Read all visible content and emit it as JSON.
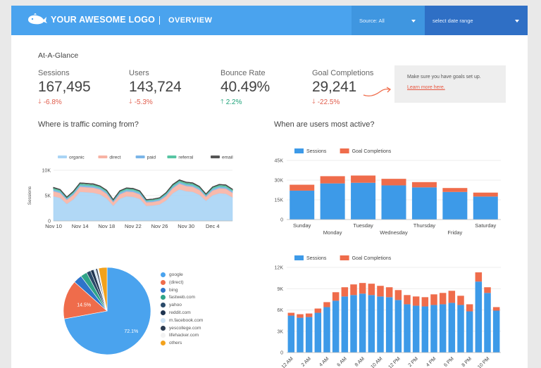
{
  "header": {
    "logo_text": "YOUR AWESOME LOGO",
    "section": "OVERVIEW",
    "source_label": "Source: All",
    "date_label": "select date range"
  },
  "glance_title": "At-A-Glance",
  "metrics": [
    {
      "label": "Sessions",
      "value": "167,495",
      "delta": "-6.8%",
      "direction": "down"
    },
    {
      "label": "Users",
      "value": "143,724",
      "delta": "-5.3%",
      "direction": "down"
    },
    {
      "label": "Bounce Rate",
      "value": "40.49%",
      "delta": "2.2%",
      "direction": "up"
    },
    {
      "label": "Goal Completions",
      "value": "29,241",
      "delta": "-22.5%",
      "direction": "down"
    }
  ],
  "goals_note": {
    "text": "Make sure you have goals set up.",
    "link": "Learn more here."
  },
  "sections": {
    "traffic": "Where is traffic coming from?",
    "active": "When are users most active?"
  },
  "colors": {
    "brand": "#4aa3ee",
    "sessions": "#3d9ae8",
    "goals": "#ef6c4b",
    "negative": "#e05c4b",
    "positive": "#1fa37a"
  },
  "chart_data": [
    {
      "type": "area",
      "ylabel": "Sessions",
      "x": [
        "Nov 10",
        "",
        "",
        "",
        "Nov 14",
        "",
        "",
        "",
        "Nov 18",
        "",
        "",
        "",
        "Nov 22",
        "",
        "",
        "",
        "Nov 26",
        "",
        "",
        "",
        "Nov 30",
        "",
        "",
        "",
        "Dec 4",
        "",
        "",
        ""
      ],
      "x_ticks": [
        "Nov 10",
        "Nov 14",
        "Nov 18",
        "Nov 22",
        "Nov 26",
        "Nov 30",
        "Dec 4"
      ],
      "ylim": [
        0,
        10000
      ],
      "y_ticks": [
        "0",
        "5K",
        "10K"
      ],
      "stacked": true,
      "series": [
        {
          "name": "organic",
          "color": "#a9d4f5",
          "values": [
            4800,
            4500,
            3300,
            4200,
            5700,
            5600,
            5500,
            5200,
            4400,
            2900,
            4300,
            4800,
            4700,
            4300,
            2900,
            3000,
            3200,
            4000,
            5400,
            6200,
            5800,
            5700,
            5100,
            3900,
            5000,
            5400,
            5300,
            4600
          ]
        },
        {
          "name": "direct",
          "color": "#f7b3a4",
          "values": [
            1000,
            950,
            800,
            900,
            1000,
            1000,
            1000,
            950,
            900,
            700,
            900,
            950,
            950,
            900,
            700,
            700,
            750,
            850,
            1000,
            1100,
            1050,
            1000,
            950,
            800,
            950,
            1000,
            1000,
            900
          ]
        },
        {
          "name": "paid",
          "color": "#7ab5e8",
          "values": [
            300,
            300,
            250,
            300,
            300,
            300,
            300,
            300,
            300,
            250,
            300,
            300,
            300,
            300,
            250,
            250,
            250,
            300,
            300,
            300,
            300,
            300,
            300,
            250,
            300,
            300,
            300,
            300
          ]
        },
        {
          "name": "referral",
          "color": "#58c5a3",
          "values": [
            300,
            300,
            250,
            300,
            300,
            300,
            300,
            300,
            300,
            250,
            300,
            300,
            300,
            300,
            250,
            250,
            250,
            300,
            300,
            300,
            300,
            300,
            300,
            250,
            300,
            300,
            300,
            300
          ]
        },
        {
          "name": "email",
          "color": "#555555",
          "values": [
            200,
            150,
            100,
            150,
            200,
            200,
            200,
            150,
            150,
            100,
            150,
            150,
            150,
            150,
            100,
            100,
            100,
            150,
            200,
            200,
            200,
            200,
            150,
            100,
            150,
            200,
            200,
            150
          ]
        }
      ]
    },
    {
      "type": "bar",
      "stacked": true,
      "categories": [
        "Sunday",
        "Monday",
        "Tuesday",
        "Wednesday",
        "Thursday",
        "Friday",
        "Saturday"
      ],
      "ylim": [
        0,
        45000
      ],
      "y_ticks": [
        "0",
        "15K",
        "30K",
        "45K"
      ],
      "series": [
        {
          "name": "Sessions",
          "color": "#3d9ae8",
          "values": [
            22000,
            27500,
            28000,
            26000,
            24500,
            21000,
            17500
          ]
        },
        {
          "name": "Goal Completions",
          "color": "#ef6c4b",
          "values": [
            4500,
            5500,
            5500,
            5000,
            4000,
            3000,
            3000
          ]
        }
      ]
    },
    {
      "type": "pie",
      "labels": [
        "google",
        "(direct)",
        "bing",
        "fastweb.com",
        "yahoo",
        "reddit.com",
        "m.facebook.com",
        "yescollege.com",
        "lifehacker.com",
        "others"
      ],
      "values": [
        72.1,
        14.5,
        3.2,
        2.4,
        1.6,
        1.2,
        0.8,
        0.6,
        0.5,
        3.1
      ],
      "data_labels": [
        "72.1%",
        "14.5%",
        "",
        "",
        "",
        "",
        "",
        "",
        "",
        ""
      ],
      "colors": [
        "#4aa3ee",
        "#ef6c4b",
        "#2e74c9",
        "#2fa488",
        "#2a4a6a",
        "#1f3450",
        "#cfe4f6",
        "#2a3a50",
        "#f2f2f2",
        "#f3a21c"
      ]
    },
    {
      "type": "bar",
      "stacked": true,
      "categories": [
        "12 AM",
        "1 AM",
        "2 AM",
        "3 AM",
        "4 AM",
        "5 AM",
        "6 AM",
        "7 AM",
        "8 AM",
        "9 AM",
        "10 AM",
        "11 AM",
        "12 PM",
        "1 PM",
        "2 PM",
        "3 PM",
        "4 PM",
        "5 PM",
        "6 PM",
        "7 PM",
        "8 PM",
        "9 PM",
        "10 PM",
        "11 PM"
      ],
      "x_ticks": [
        "12 AM",
        "2 AM",
        "4 AM",
        "6 AM",
        "8 AM",
        "10 AM",
        "12 PM",
        "2 PM",
        "4 PM",
        "6 PM",
        "8 PM",
        "10 PM"
      ],
      "ylim": [
        0,
        12000
      ],
      "y_ticks": [
        "0",
        "3K",
        "6K",
        "9K",
        "12K"
      ],
      "series": [
        {
          "name": "Sessions",
          "color": "#3d9ae8",
          "values": [
            5200,
            4900,
            5000,
            5600,
            6400,
            7300,
            7900,
            8100,
            8300,
            8100,
            7900,
            7800,
            7400,
            6800,
            6600,
            6500,
            6700,
            6800,
            7000,
            6700,
            5800,
            10000,
            8400,
            5900
          ]
        },
        {
          "name": "Goal Completions",
          "color": "#ef6c4b",
          "values": [
            400,
            500,
            500,
            600,
            700,
            1200,
            1300,
            1500,
            1500,
            1600,
            1500,
            1400,
            1400,
            1300,
            1300,
            1300,
            1500,
            1600,
            1700,
            1300,
            1000,
            1300,
            800,
            500
          ]
        }
      ]
    }
  ]
}
